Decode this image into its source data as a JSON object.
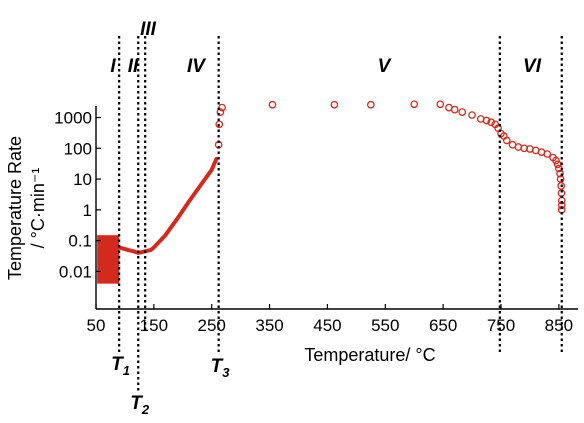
{
  "chart_data": {
    "type": "scatter",
    "xlabel": "Temperature/ °C",
    "ylabel": "Temperature Rate / °C·min⁻¹",
    "x_ticks": [
      50,
      150,
      250,
      350,
      450,
      550,
      650,
      750,
      850
    ],
    "y_ticks": [
      {
        "value": 0.01,
        "label": "0.01"
      },
      {
        "value": 0.1,
        "label": "0.1"
      },
      {
        "value": 1,
        "label": "1"
      },
      {
        "value": 10,
        "label": "10"
      },
      {
        "value": 100,
        "label": "100"
      },
      {
        "value": 1000,
        "label": "1000"
      }
    ],
    "xlim": [
      50,
      890
    ],
    "ylim": [
      0.0006,
      5000
    ],
    "y_scale": "log",
    "color": "#d42a1e",
    "regions": [
      "I",
      "II",
      "III",
      "IV",
      "V",
      "VI"
    ],
    "boundaries": [
      {
        "x": 90,
        "label": "T",
        "sub": "1"
      },
      {
        "x": 123,
        "label": "T",
        "sub": "2"
      },
      {
        "x": 262,
        "label": "T",
        "sub": "3"
      },
      {
        "x": 748
      },
      {
        "x": 855
      }
    ],
    "noisy_band": {
      "x": [
        52,
        90
      ],
      "y": [
        0.004,
        0.15
      ]
    },
    "dense_trace": {
      "x": [
        90,
        105,
        115,
        123,
        135,
        145,
        150,
        170,
        190,
        210,
        230,
        250,
        258
      ],
      "y": [
        0.06,
        0.05,
        0.045,
        0.04,
        0.045,
        0.05,
        0.06,
        0.15,
        0.5,
        1.8,
        6,
        20,
        45
      ]
    },
    "series": [
      {
        "values": [
          [
            262,
            130
          ],
          [
            263,
            600
          ],
          [
            265,
            1500
          ],
          [
            268,
            2100
          ],
          [
            355,
            2600
          ],
          [
            462,
            2600
          ],
          [
            525,
            2600
          ],
          [
            600,
            2700
          ],
          [
            645,
            2700
          ],
          [
            660,
            2100
          ],
          [
            670,
            1800
          ],
          [
            683,
            1500
          ],
          [
            700,
            1200
          ],
          [
            715,
            900
          ],
          [
            725,
            800
          ],
          [
            733,
            700
          ],
          [
            740,
            600
          ],
          [
            745,
            450
          ],
          [
            750,
            300
          ],
          [
            755,
            250
          ],
          [
            760,
            180
          ],
          [
            770,
            130
          ],
          [
            780,
            110
          ],
          [
            790,
            100
          ],
          [
            800,
            95
          ],
          [
            810,
            85
          ],
          [
            820,
            75
          ],
          [
            830,
            65
          ],
          [
            840,
            50
          ],
          [
            845,
            40
          ],
          [
            848,
            30
          ],
          [
            850,
            22
          ],
          [
            852,
            15
          ],
          [
            853,
            10
          ],
          [
            854,
            6
          ],
          [
            854.5,
            3.5
          ],
          [
            855,
            2
          ],
          [
            855,
            1.4
          ],
          [
            855,
            1.0
          ]
        ]
      }
    ]
  }
}
